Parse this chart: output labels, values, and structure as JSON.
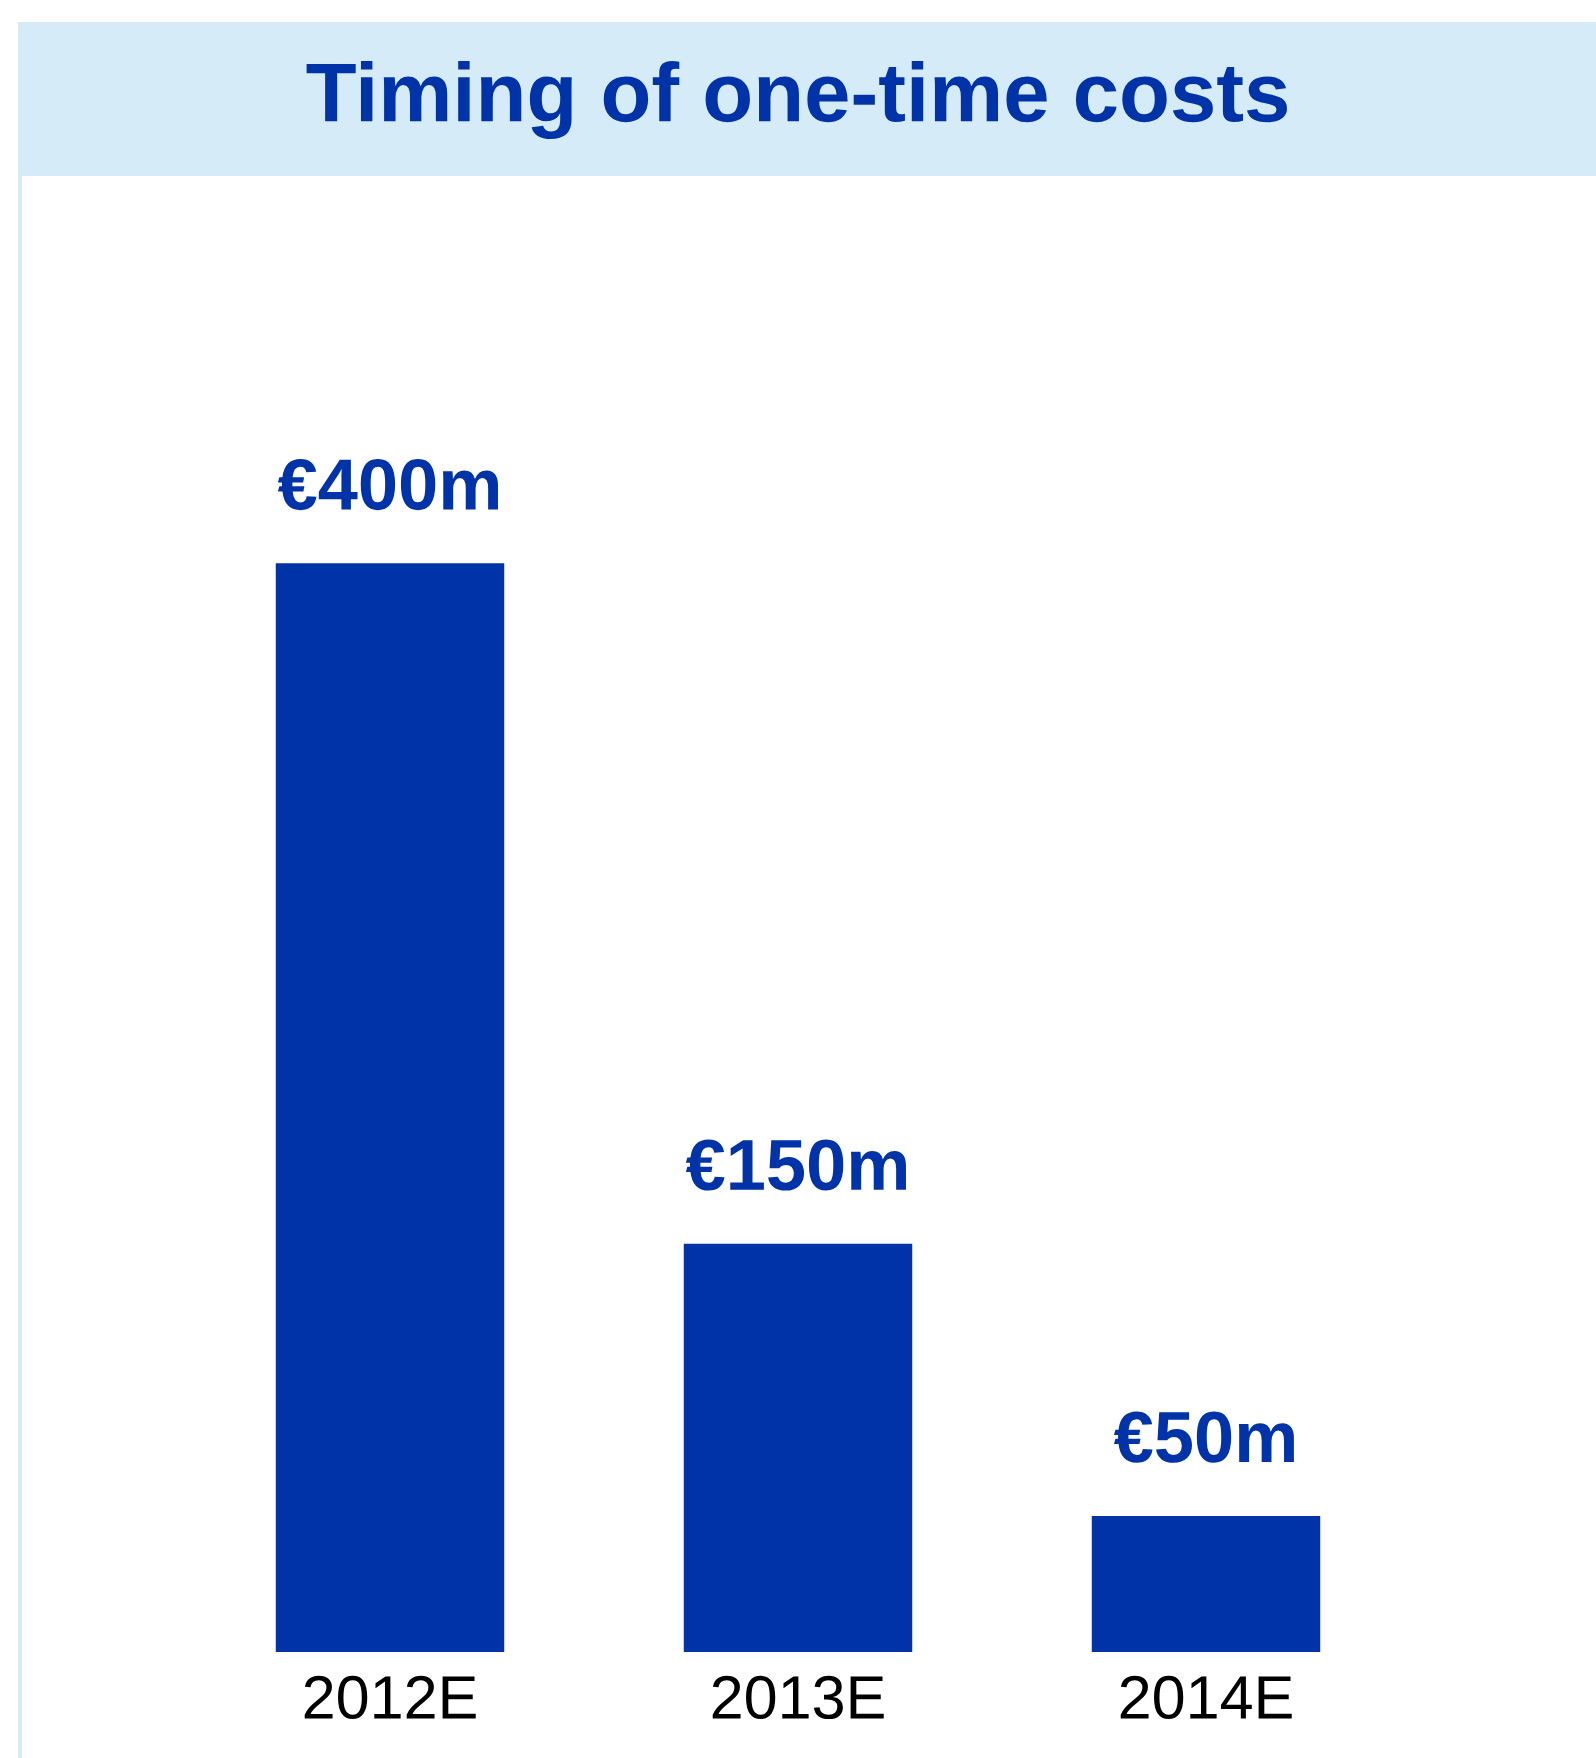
{
  "chart_data": {
    "type": "bar",
    "title": "Timing of one-time costs",
    "categories": [
      "2012E",
      "2013E",
      "2014E"
    ],
    "values": [
      400,
      150,
      50
    ],
    "color": "#0033a8",
    "value_labels": [
      "€400m",
      "€150m",
      "€50m"
    ],
    "tick_labels": "x"
  }
}
